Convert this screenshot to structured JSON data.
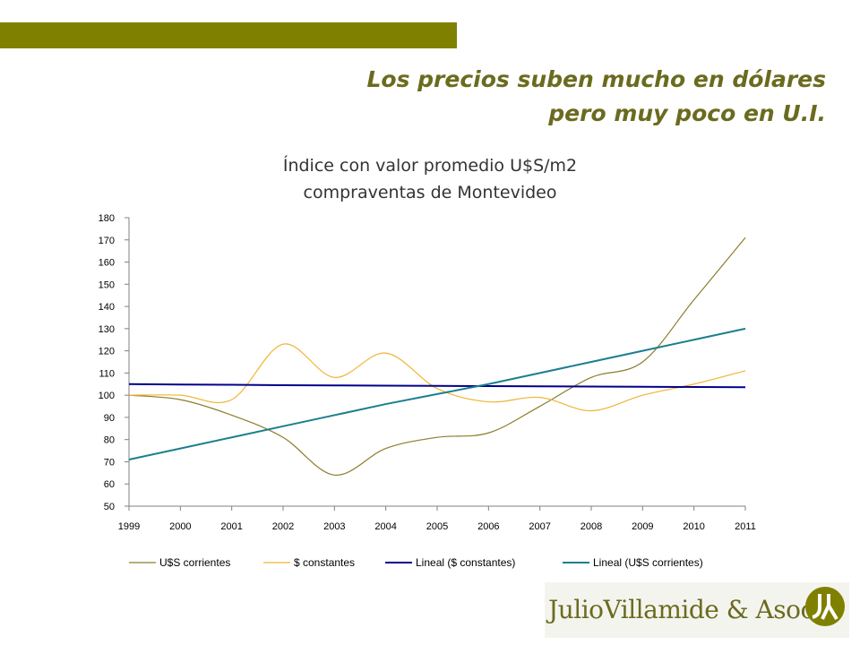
{
  "slide": {
    "headline_line1": "Los precios suben mucho en dólares",
    "headline_line2": "pero muy poco en U.I."
  },
  "brand": {
    "name": "JulioVillamide & Asoc.",
    "accent_color": "#808000"
  },
  "chart_data": {
    "type": "line",
    "title_lines": [
      "Índice con valor promedio U$S/m2",
      "compraventas de Montevideo"
    ],
    "categories": [
      "1999",
      "2000",
      "2001",
      "2002",
      "2003",
      "2004",
      "2005",
      "2006",
      "2007",
      "2008",
      "2009",
      "2010",
      "2011"
    ],
    "ylim": [
      50,
      180
    ],
    "yticks": [
      50,
      60,
      70,
      80,
      90,
      100,
      110,
      120,
      130,
      140,
      150,
      160,
      170,
      180
    ],
    "legend_position": "bottom",
    "series": [
      {
        "name": "U$S corrientes",
        "color": "#8b7d2a",
        "smooth": true,
        "values": [
          100,
          98,
          91,
          81,
          64,
          76,
          81,
          83,
          95,
          108,
          115,
          143,
          171
        ]
      },
      {
        "name": "$ constantes",
        "color": "#f0b435",
        "smooth": true,
        "values": [
          100,
          100,
          98,
          123,
          108,
          119,
          103,
          97,
          99,
          93,
          100,
          105,
          111
        ]
      },
      {
        "name": "Lineal ($ constantes)",
        "color": "#00008b",
        "trend": true,
        "values": [
          105,
          104.8,
          104.7,
          104.5,
          104.4,
          104.3,
          104.2,
          104.1,
          104.0,
          103.9,
          103.8,
          103.7,
          103.6
        ]
      },
      {
        "name": "Lineal (U$S corrientes)",
        "color": "#1a7f8e",
        "trend": true,
        "values": [
          71,
          76,
          81,
          86,
          91,
          96,
          100.5,
          105,
          110,
          115,
          120,
          125,
          130
        ]
      }
    ]
  }
}
